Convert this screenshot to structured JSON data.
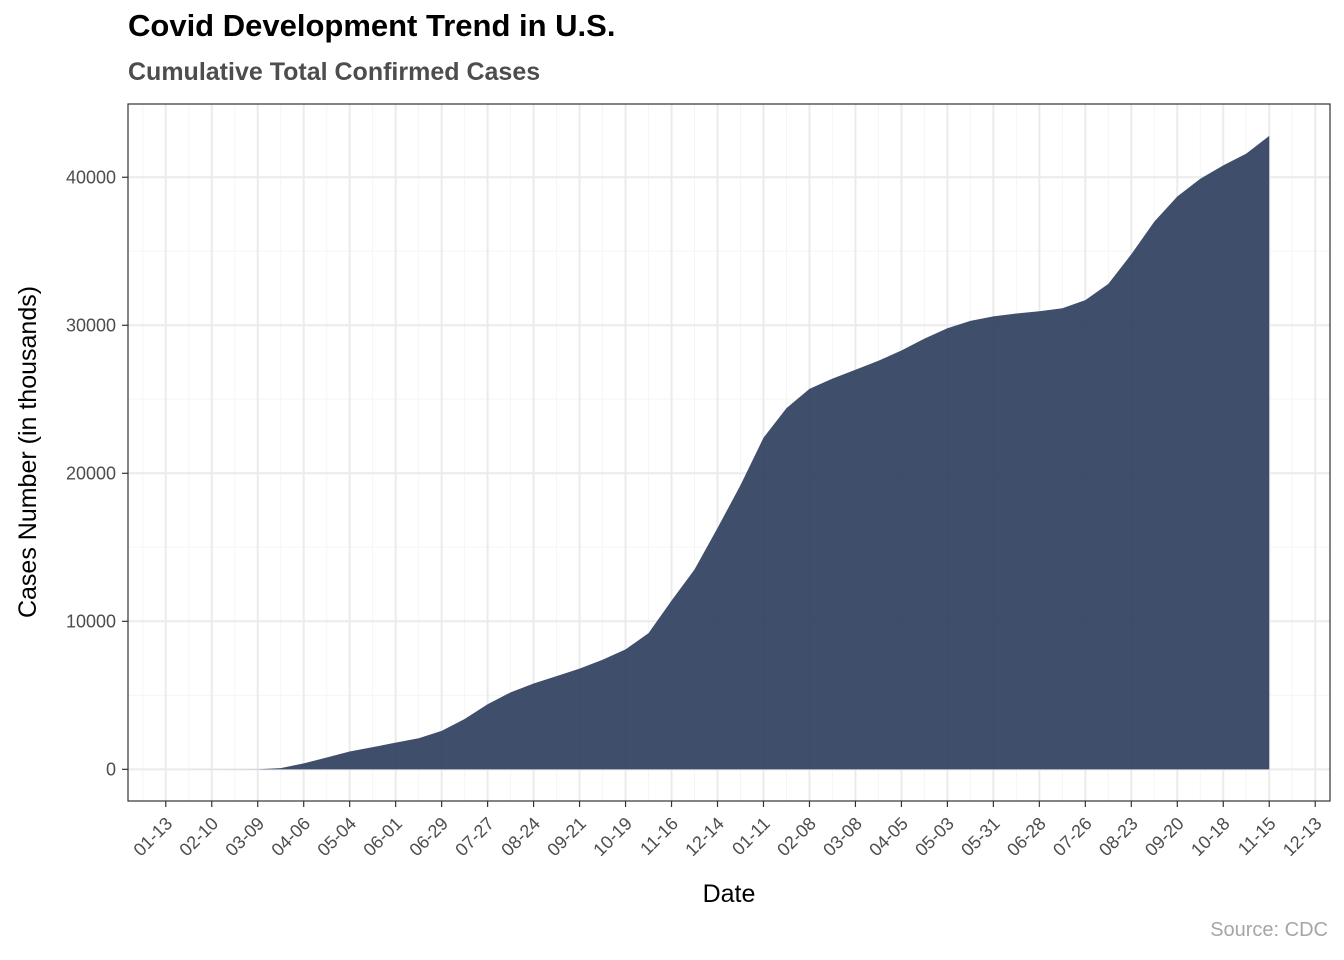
{
  "title": "Covid Development Trend in U.S.",
  "subtitle": "Cumulative Total Confirmed Cases",
  "caption": "Source: CDC",
  "colors": {
    "area": "#2f405e",
    "grid_major": "#ebebeb",
    "grid_minor": "#f5f5f5",
    "panel_border": "#333333"
  },
  "chart_data": {
    "type": "area",
    "xlabel": "Date",
    "ylabel": "Cases Number (in thousands)",
    "x_tick_labels": [
      "01-13",
      "02-10",
      "03-09",
      "04-06",
      "05-04",
      "06-01",
      "06-29",
      "07-27",
      "08-24",
      "09-21",
      "10-19",
      "11-16",
      "12-14",
      "01-11",
      "02-08",
      "03-08",
      "04-05",
      "05-03",
      "05-31",
      "06-28",
      "07-26",
      "08-23",
      "09-20",
      "10-18",
      "11-15",
      "12-13"
    ],
    "x_tick_dates": [
      "2020-01-13",
      "2020-02-10",
      "2020-03-09",
      "2020-04-06",
      "2020-05-04",
      "2020-06-01",
      "2020-06-29",
      "2020-07-27",
      "2020-08-24",
      "2020-09-21",
      "2020-10-19",
      "2020-11-16",
      "2020-12-14",
      "2021-01-11",
      "2021-02-08",
      "2021-03-08",
      "2021-04-05",
      "2021-05-03",
      "2021-05-31",
      "2021-06-28",
      "2021-07-26",
      "2021-08-23",
      "2021-09-20",
      "2021-10-18",
      "2021-11-15",
      "2021-12-13"
    ],
    "xlim": [
      "2019-12-21",
      "2021-12-22"
    ],
    "y_ticks": [
      0,
      10000,
      20000,
      30000,
      40000
    ],
    "ylim": [
      -2140,
      44950
    ],
    "grid": true,
    "legend": "none",
    "series": [
      {
        "x": [
          "2020-01-22",
          "2020-03-09",
          "2020-03-23",
          "2020-04-06",
          "2020-04-20",
          "2020-05-04",
          "2020-05-18",
          "2020-06-01",
          "2020-06-15",
          "2020-06-29",
          "2020-07-13",
          "2020-07-27",
          "2020-08-10",
          "2020-08-24",
          "2020-09-07",
          "2020-09-21",
          "2020-10-05",
          "2020-10-19",
          "2020-11-02",
          "2020-11-16",
          "2020-11-30",
          "2020-12-14",
          "2020-12-28",
          "2021-01-11",
          "2021-01-25",
          "2021-02-08",
          "2021-02-22",
          "2021-03-08",
          "2021-03-22",
          "2021-04-05",
          "2021-04-19",
          "2021-05-03",
          "2021-05-17",
          "2021-05-31",
          "2021-06-14",
          "2021-06-28",
          "2021-07-12",
          "2021-07-26",
          "2021-08-09",
          "2021-08-23",
          "2021-09-06",
          "2021-09-20",
          "2021-10-04",
          "2021-10-18",
          "2021-11-01",
          "2021-11-15"
        ],
        "values": [
          0,
          5,
          80,
          400,
          800,
          1200,
          1500,
          1800,
          2100,
          2600,
          3400,
          4400,
          5200,
          5800,
          6300,
          6800,
          7400,
          8100,
          9200,
          11400,
          13500,
          16300,
          19200,
          22400,
          24400,
          25700,
          26400,
          27000,
          27600,
          28300,
          29100,
          29800,
          30300,
          30600,
          30800,
          30950,
          31150,
          31700,
          32800,
          34800,
          37000,
          38700,
          39900,
          40800,
          41600,
          42800
        ]
      }
    ]
  }
}
